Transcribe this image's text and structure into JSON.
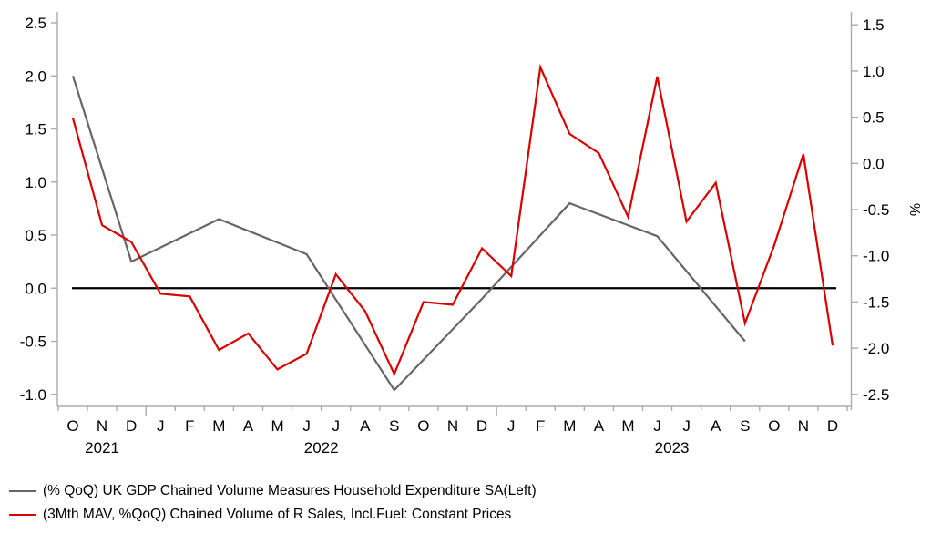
{
  "figure": {
    "background_color": "#ffffff",
    "axis_color": "#ababab",
    "text_color": "#000000"
  },
  "chart_data": {
    "type": "line",
    "title": "",
    "x_axis": {
      "month_tick_labels": [
        "O",
        "N",
        "D",
        "J",
        "F",
        "M",
        "A",
        "M",
        "J",
        "J",
        "A",
        "S",
        "O",
        "N",
        "D",
        "J",
        "F",
        "M",
        "A",
        "M",
        "J",
        "J",
        "A",
        "S",
        "O",
        "N",
        "D"
      ],
      "months_full": [
        "Oct 2021",
        "Nov 2021",
        "Dec 2021",
        "Jan 2022",
        "Feb 2022",
        "Mar 2022",
        "Apr 2022",
        "May 2022",
        "Jun 2022",
        "Jul 2022",
        "Aug 2022",
        "Sep 2022",
        "Oct 2022",
        "Nov 2022",
        "Dec 2022",
        "Jan 2023",
        "Feb 2023",
        "Mar 2023",
        "Apr 2023",
        "May 2023",
        "Jun 2023",
        "Jul 2023",
        "Aug 2023",
        "Sep 2023",
        "Oct 2023",
        "Nov 2023",
        "Dec 2023"
      ],
      "year_labels": [
        {
          "text": "2021",
          "center_month_index": 1
        },
        {
          "text": "2022",
          "center_month_index": 8.5
        },
        {
          "text": "2023",
          "center_month_index": 20.5
        }
      ]
    },
    "left_axis": {
      "tick_values": [
        2.5,
        2.0,
        1.5,
        1.0,
        0.5,
        0.0,
        -0.5,
        -1.0
      ],
      "ylim": [
        -1.11,
        2.6
      ],
      "label": ""
    },
    "right_axis": {
      "tick_values": [
        1.5,
        1.0,
        0.5,
        0.0,
        -0.5,
        -1.0,
        -1.5,
        -2.0,
        -2.5
      ],
      "ylim": [
        -2.63,
        1.64
      ],
      "label": "%"
    },
    "zero_line": {
      "axis": "left",
      "value": 0.0,
      "color": "#000000"
    },
    "series": [
      {
        "name": "uk-gdp-household-expenditure",
        "label": "(% QoQ) UK GDP Chained Volume Measures Household Expenditure SA(Left)",
        "axis": "left",
        "color": "#666666",
        "points": [
          {
            "month": "Oct 2021",
            "month_index": 0,
            "value": 2.0
          },
          {
            "month": "Dec 2021",
            "month_index": 2,
            "value": 0.25
          },
          {
            "month": "Mar 2022",
            "month_index": 5,
            "value": 0.65
          },
          {
            "month": "Jun 2022",
            "month_index": 8,
            "value": 0.32
          },
          {
            "month": "Sep 2022",
            "month_index": 11,
            "value": -0.96
          },
          {
            "month": "Dec 2022",
            "month_index": 14,
            "value": -0.1
          },
          {
            "month": "Mar 2023",
            "month_index": 17,
            "value": 0.8
          },
          {
            "month": "Jun 2023",
            "month_index": 20,
            "value": 0.49
          },
          {
            "month": "Sep 2023",
            "month_index": 23,
            "value": -0.5
          }
        ]
      },
      {
        "name": "retail-sales-3mth-mav",
        "label": "(3Mth MAV, %QoQ) Chained Volume of R Sales, Incl.Fuel: Constant Prices",
        "axis": "right",
        "color": "#d90000",
        "points": [
          {
            "month": "Oct 2021",
            "month_index": 0,
            "value": 0.49
          },
          {
            "month": "Nov 2021",
            "month_index": 1,
            "value": -0.67
          },
          {
            "month": "Dec 2021",
            "month_index": 2,
            "value": -0.85
          },
          {
            "month": "Jan 2022",
            "month_index": 3,
            "value": -1.41
          },
          {
            "month": "Feb 2022",
            "month_index": 4,
            "value": -1.44
          },
          {
            "month": "Mar 2022",
            "month_index": 5,
            "value": -2.02
          },
          {
            "month": "Apr 2022",
            "month_index": 6,
            "value": -1.84
          },
          {
            "month": "May 2022",
            "month_index": 7,
            "value": -2.23
          },
          {
            "month": "Jun 2022",
            "month_index": 8,
            "value": -2.06
          },
          {
            "month": "Jul 2022",
            "month_index": 9,
            "value": -1.2
          },
          {
            "month": "Aug 2022",
            "month_index": 10,
            "value": -1.6
          },
          {
            "month": "Sep 2022",
            "month_index": 11,
            "value": -2.28
          },
          {
            "month": "Oct 2022",
            "month_index": 12,
            "value": -1.5
          },
          {
            "month": "Nov 2022",
            "month_index": 13,
            "value": -1.53
          },
          {
            "month": "Dec 2022",
            "month_index": 14,
            "value": -0.92
          },
          {
            "month": "Jan 2023",
            "month_index": 15,
            "value": -1.22
          },
          {
            "month": "Feb 2023",
            "month_index": 16,
            "value": 1.04
          },
          {
            "month": "Mar 2023",
            "month_index": 17,
            "value": 0.32
          },
          {
            "month": "Apr 2023",
            "month_index": 18,
            "value": 0.11
          },
          {
            "month": "May 2023",
            "month_index": 19,
            "value": -0.58
          },
          {
            "month": "Jun 2023",
            "month_index": 20,
            "value": 0.94
          },
          {
            "month": "Jul 2023",
            "month_index": 21,
            "value": -0.63
          },
          {
            "month": "Aug 2023",
            "month_index": 22,
            "value": -0.21
          },
          {
            "month": "Sep 2023",
            "month_index": 23,
            "value": -1.73
          },
          {
            "month": "Oct 2023",
            "month_index": 24,
            "value": -0.89
          },
          {
            "month": "Nov 2023",
            "month_index": 25,
            "value": 0.1
          },
          {
            "month": "Dec 2023",
            "month_index": 26,
            "value": -1.97
          }
        ]
      }
    ],
    "legend_position": "bottom-left",
    "grid": false
  }
}
